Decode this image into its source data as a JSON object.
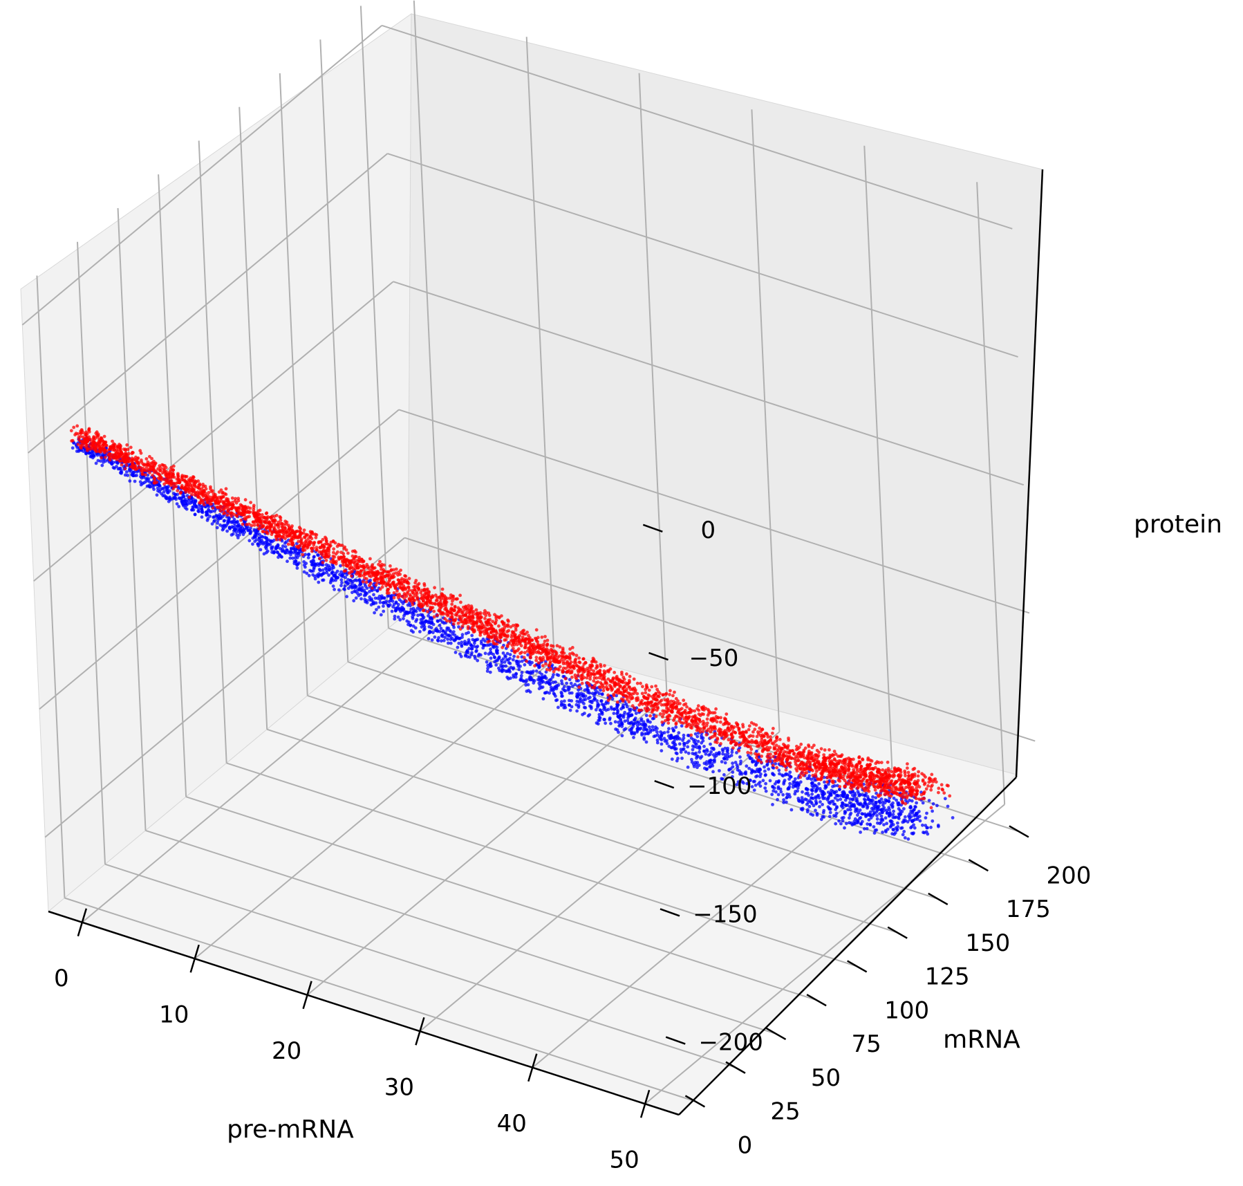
{
  "chart_data": {
    "type": "scatter3d",
    "axes": {
      "x": {
        "label": "pre-mRNA",
        "range": [
          -3,
          53
        ],
        "ticks": [
          0,
          10,
          20,
          30,
          40,
          50
        ],
        "tick_labels": [
          "0",
          "10",
          "20",
          "30",
          "40",
          "50"
        ]
      },
      "y": {
        "label": "mRNA",
        "range": [
          -10,
          212
        ],
        "ticks": [
          0,
          25,
          50,
          75,
          100,
          125,
          150,
          175,
          200
        ],
        "tick_labels": [
          "0",
          "25",
          "50",
          "75",
          "100",
          "125",
          "150",
          "175",
          "200"
        ]
      },
      "z": {
        "label": "protein",
        "range": [
          -229,
          14
        ],
        "ticks": [
          0,
          -50,
          -100,
          -150,
          -200
        ],
        "tick_labels": [
          "0",
          "−50",
          "−100",
          "−150",
          "−200"
        ]
      }
    },
    "grid": true,
    "series": [
      {
        "color": "#0000ff",
        "marker": "dot",
        "description_points": [
          [
            0,
            0,
            -45
          ],
          [
            10,
            40,
            -88
          ],
          [
            20,
            80,
            -130
          ],
          [
            30,
            120,
            -170
          ],
          [
            40,
            160,
            -205
          ],
          [
            46,
            190,
            -222
          ]
        ]
      },
      {
        "color": "#ff0000",
        "marker": "dot",
        "description_points": [
          [
            0,
            0,
            -45
          ],
          [
            10,
            40,
            -85
          ],
          [
            20,
            80,
            -125
          ],
          [
            30,
            120,
            -165
          ],
          [
            40,
            160,
            -200
          ],
          [
            46,
            190,
            -218
          ]
        ]
      }
    ]
  }
}
